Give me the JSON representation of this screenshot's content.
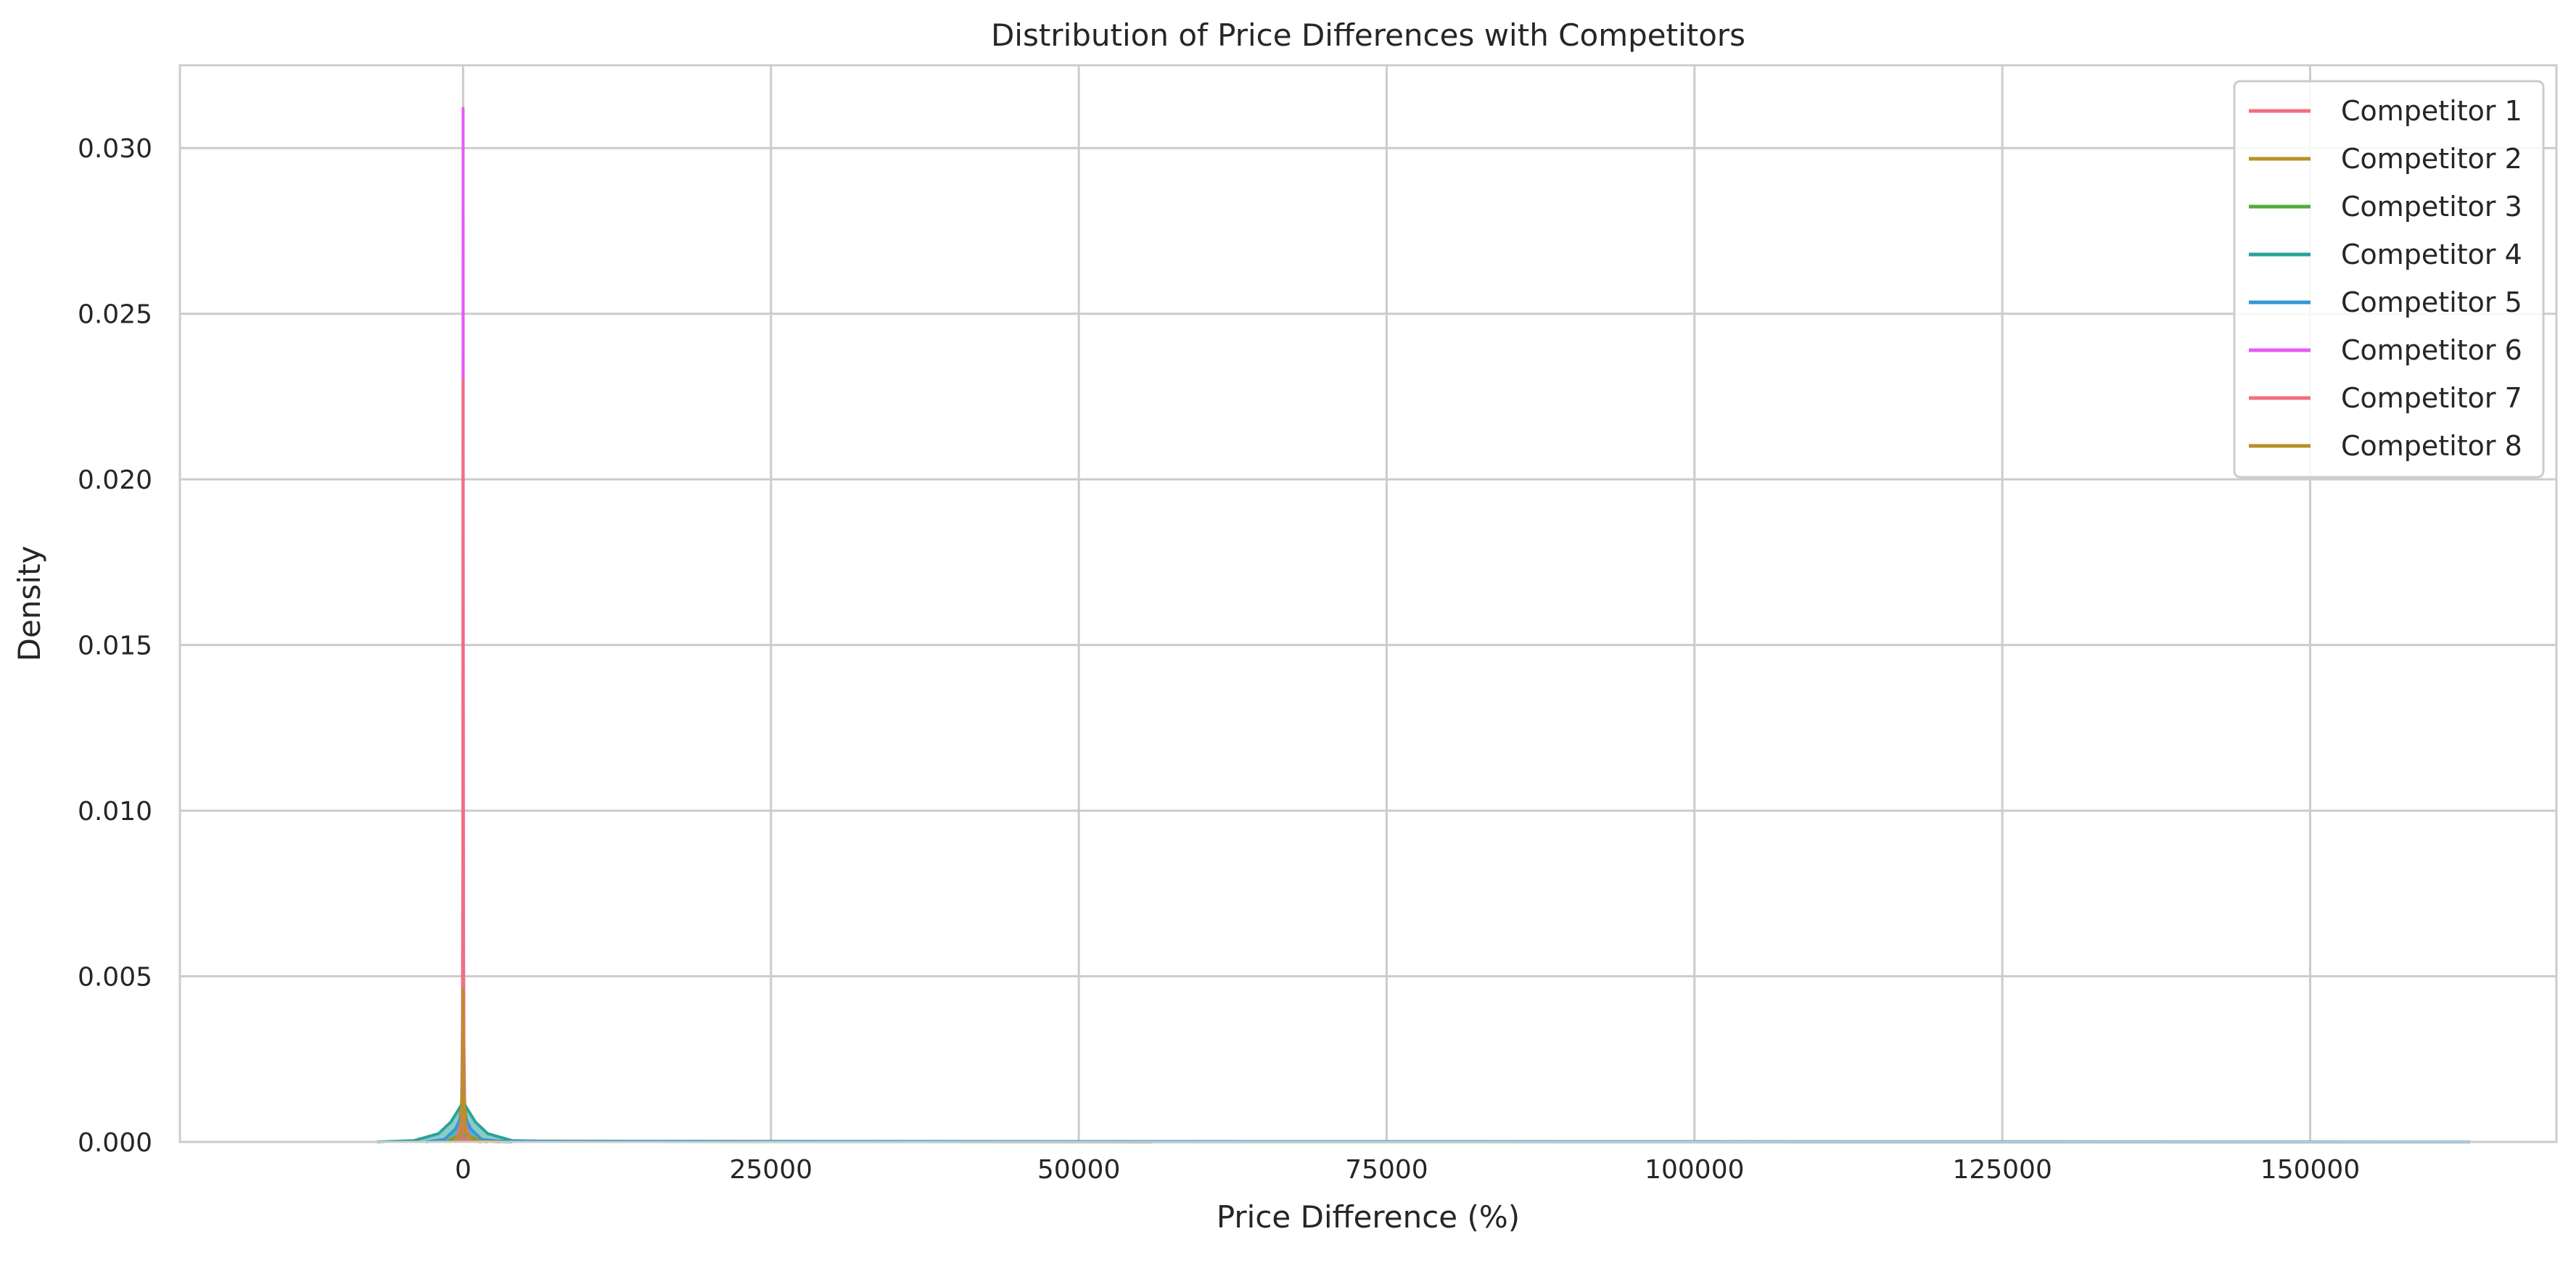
{
  "chart_data": {
    "type": "area",
    "subtype": "kde",
    "title": "Distribution of Price Differences with Competitors",
    "xlabel": "Price Difference (%)",
    "ylabel": "Density",
    "xlim": [
      -23000,
      170000
    ],
    "ylim": [
      0,
      0.0325
    ],
    "x_ticks": [
      0,
      25000,
      50000,
      75000,
      100000,
      125000,
      150000
    ],
    "x_tick_labels": [
      "0",
      "25000",
      "50000",
      "75000",
      "100000",
      "125000",
      "150000"
    ],
    "y_ticks": [
      0,
      0.005,
      0.01,
      0.015,
      0.02,
      0.025,
      0.03
    ],
    "y_tick_labels": [
      "0.000",
      "0.005",
      "0.010",
      "0.015",
      "0.020",
      "0.025",
      "0.030"
    ],
    "grid": true,
    "legend_position": "top-right",
    "series": [
      {
        "name": "Competitor 1",
        "color": "#f0707f",
        "fill": true,
        "x": [
          -600,
          -150,
          -40,
          0,
          40,
          150,
          600,
          2000
        ],
        "y": [
          0,
          0.0004,
          0.004,
          0.0165,
          0.004,
          0.0004,
          3e-05,
          0
        ]
      },
      {
        "name": "Competitor 2",
        "color": "#b8902a",
        "fill": true,
        "x": [
          -1500,
          -400,
          -100,
          0,
          100,
          400,
          1500,
          56000
        ],
        "y": [
          0,
          0.0002,
          0.0013,
          0.0038,
          0.0013,
          0.0002,
          3e-05,
          0
        ]
      },
      {
        "name": "Competitor 3",
        "color": "#56aa3a",
        "fill": true,
        "x": [
          -1200,
          -300,
          -80,
          0,
          80,
          300,
          1200,
          4000
        ],
        "y": [
          0,
          0.0002,
          0.0008,
          0.002,
          0.0008,
          0.0002,
          2e-05,
          0
        ]
      },
      {
        "name": "Competitor 4",
        "color": "#2aa39a",
        "fill": true,
        "x": [
          -7000,
          -4000,
          -2000,
          -1000,
          0,
          1000,
          2000,
          4000,
          8000,
          163000
        ],
        "y": [
          0,
          4e-05,
          0.00025,
          0.0006,
          0.0012,
          0.0006,
          0.00025,
          4e-05,
          1e-05,
          0
        ]
      },
      {
        "name": "Competitor 5",
        "color": "#3199d8",
        "fill": true,
        "x": [
          -3000,
          -1500,
          -600,
          0,
          600,
          1500,
          3000,
          163000
        ],
        "y": [
          0,
          8e-05,
          0.0004,
          0.0009,
          0.0004,
          8e-05,
          2e-05,
          0
        ]
      },
      {
        "name": "Competitor 6",
        "color": "#e65bf2",
        "fill": true,
        "x": [
          -500,
          -80,
          -20,
          0,
          20,
          80,
          500,
          1500
        ],
        "y": [
          0,
          0.0008,
          0.009,
          0.0312,
          0.009,
          0.0008,
          3e-05,
          0
        ]
      },
      {
        "name": "Competitor 7",
        "color": "#f0707f",
        "fill": true,
        "x": [
          -500,
          -80,
          -20,
          0,
          20,
          80,
          500,
          1500
        ],
        "y": [
          0,
          0.0007,
          0.007,
          0.023,
          0.007,
          0.0007,
          3e-05,
          0
        ]
      },
      {
        "name": "Competitor 8",
        "color": "#b8902a",
        "fill": true,
        "x": [
          -800,
          -200,
          -50,
          0,
          50,
          200,
          800,
          3000
        ],
        "y": [
          0,
          0.0003,
          0.0015,
          0.0046,
          0.0015,
          0.0003,
          3e-05,
          0
        ]
      }
    ]
  }
}
